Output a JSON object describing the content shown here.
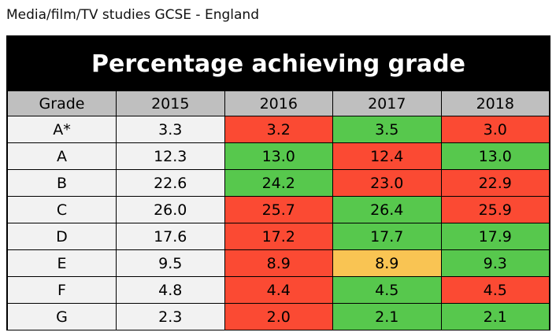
{
  "caption": "Media/film/TV studies GCSE - England",
  "chart_data": {
    "type": "table",
    "title": "Percentage achieving grade",
    "columns": [
      "Grade",
      "2015",
      "2016",
      "2017",
      "2018"
    ],
    "rows": [
      {
        "grade": "A*",
        "values": [
          "3.3",
          "3.2",
          "3.5",
          "3.0"
        ],
        "status": [
          "base",
          "down",
          "up",
          "down"
        ]
      },
      {
        "grade": "A",
        "values": [
          "12.3",
          "13.0",
          "12.4",
          "13.0"
        ],
        "status": [
          "base",
          "up",
          "down",
          "up"
        ]
      },
      {
        "grade": "B",
        "values": [
          "22.6",
          "24.2",
          "23.0",
          "22.9"
        ],
        "status": [
          "base",
          "up",
          "down",
          "down"
        ]
      },
      {
        "grade": "C",
        "values": [
          "26.0",
          "25.7",
          "26.4",
          "25.9"
        ],
        "status": [
          "base",
          "down",
          "up",
          "down"
        ]
      },
      {
        "grade": "D",
        "values": [
          "17.6",
          "17.2",
          "17.7",
          "17.9"
        ],
        "status": [
          "base",
          "down",
          "up",
          "up"
        ]
      },
      {
        "grade": "E",
        "values": [
          "9.5",
          "8.9",
          "8.9",
          "9.3"
        ],
        "status": [
          "base",
          "down",
          "same",
          "up"
        ]
      },
      {
        "grade": "F",
        "values": [
          "4.8",
          "4.4",
          "4.5",
          "4.5"
        ],
        "status": [
          "base",
          "down",
          "up",
          "down"
        ]
      },
      {
        "grade": "G",
        "values": [
          "2.3",
          "2.0",
          "2.1",
          "2.1"
        ],
        "status": [
          "base",
          "down",
          "up",
          "up"
        ]
      }
    ],
    "colors": {
      "up": "#57c84d",
      "down": "#fb4a33",
      "same": "#f9c453",
      "base": "#f2f2f2",
      "header": "#bfbfbf"
    }
  }
}
